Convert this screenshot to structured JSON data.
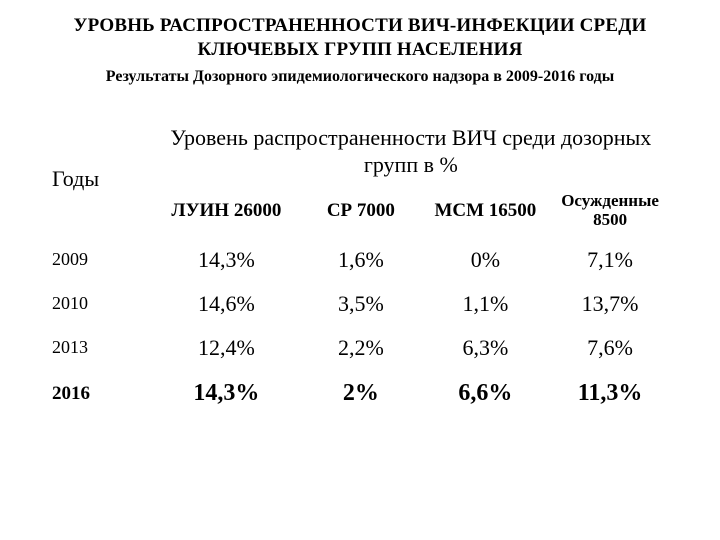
{
  "title_line1": "УРОВНЬ РАСПРОСТРАНЕННОСТИ ВИЧ-ИНФЕКЦИИ СРЕДИ",
  "title_line2": "КЛЮЧЕВЫХ ГРУПП НАСЕЛЕНИЯ",
  "subtitle": "Результаты Дозорного эпидемиологического надзора в 2009-2016 годы",
  "table": {
    "years_header": "Годы",
    "span_header_line1": "Уровень распространенности ВИЧ среди дозорных",
    "span_header_line2": "групп в %",
    "columns": {
      "c1": "ЛУИН 26000",
      "c2": "СР 7000",
      "c3": "МСМ 16500",
      "c4_line1": "Осужденные",
      "c4_line2": "8500"
    },
    "rows": [
      {
        "year": "2009",
        "c1": "14,3%",
        "c2": "1,6%",
        "c3": "0%",
        "c4": "7,1%"
      },
      {
        "year": "2010",
        "c1": "14,6%",
        "c2": "3,5%",
        "c3": "1,1%",
        "c4": "13,7%"
      },
      {
        "year": "2013",
        "c1": "12,4%",
        "c2": "2,2%",
        "c3": "6,3%",
        "c4": "7,6%"
      },
      {
        "year": "2016",
        "c1": "14,3%",
        "c2": "2%",
        "c3": "6,6%",
        "c4": "11,3%"
      }
    ]
  },
  "style": {
    "background_color": "#ffffff",
    "text_color": "#000000",
    "font_family": "Times New Roman",
    "title_fontsize_pt": 14,
    "subtitle_fontsize_pt": 12,
    "header_fontsize_pt": 16,
    "colhead_fontsize_pt": 14,
    "body_fontsize_pt": 16,
    "emph_fontsize_pt": 18
  }
}
